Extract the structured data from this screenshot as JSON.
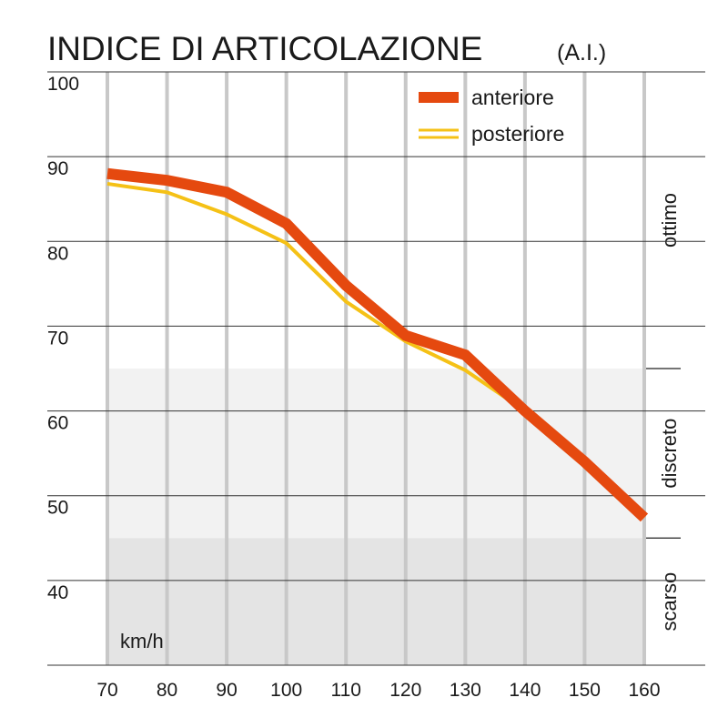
{
  "chart_data": {
    "type": "line",
    "title": "INDICE DI ARTICOLAZIONE",
    "subtitle": "(A.I.)",
    "x_label": "km/h",
    "x": [
      70,
      80,
      90,
      100,
      110,
      120,
      130,
      140,
      150,
      160
    ],
    "xlim": [
      70,
      160
    ],
    "xticks": [
      70,
      80,
      90,
      100,
      110,
      120,
      130,
      140,
      150,
      160
    ],
    "ylim": [
      30,
      100
    ],
    "yticks": [
      40,
      50,
      60,
      70,
      80,
      90,
      100
    ],
    "grid": true,
    "legend": "top-right",
    "bands": [
      {
        "label": "ottimo",
        "from": 65,
        "to": 100,
        "color": "#ffffff"
      },
      {
        "label": "discreto",
        "from": 45,
        "to": 65,
        "color": "#f2f2f2"
      },
      {
        "label": "scarso",
        "from": 30,
        "to": 45,
        "color": "#e4e4e4"
      }
    ],
    "series": [
      {
        "name": "posteriore",
        "color": "#f5c116",
        "values": [
          86.8,
          85.8,
          83.2,
          79.8,
          72.9,
          68.2,
          64.8,
          60,
          54,
          47.4
        ]
      },
      {
        "name": "anteriore",
        "color": "#e5490f",
        "values": [
          88,
          87.2,
          85.8,
          82.1,
          74.8,
          68.9,
          66.6,
          60,
          54,
          47.4
        ]
      }
    ]
  }
}
